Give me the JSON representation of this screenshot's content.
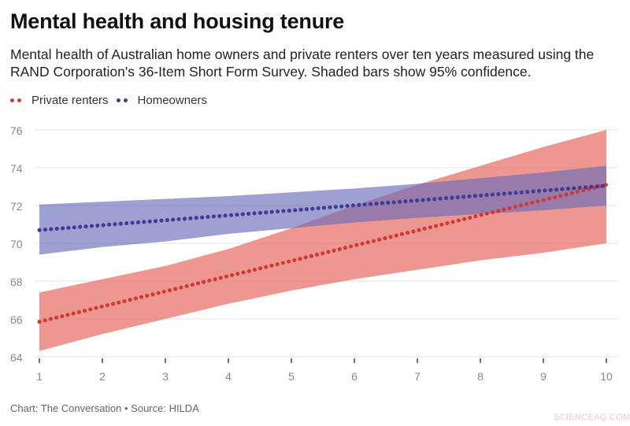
{
  "title": "Mental health and housing tenure",
  "subtitle": "Mental health of Australian home owners and private renters over ten years measured using the RAND Corporation's 36-Item Short Form Survey. Shaded bars show 95% confidence.",
  "footer": "Chart: The Conversation • Source: HILDA",
  "watermark": "SCIENCEAQ.COM",
  "chart_data": {
    "type": "line",
    "title": "Mental health and housing tenure",
    "xlabel": "",
    "ylabel": "",
    "x": [
      1,
      2,
      3,
      4,
      5,
      6,
      7,
      8,
      9,
      10
    ],
    "xlim": [
      1,
      10
    ],
    "ylim": [
      64,
      76
    ],
    "x_ticks": [
      "1",
      "2",
      "3",
      "4",
      "5",
      "6",
      "7",
      "8",
      "9",
      "10"
    ],
    "y_ticks": [
      "64",
      "66",
      "68",
      "70",
      "72",
      "74",
      "76"
    ],
    "grid": "horizontal",
    "legend_position": "top-left",
    "series": [
      {
        "name": "Private renters",
        "color": "#d03a34",
        "band_color": "#e8736b",
        "values": [
          65.85,
          66.66,
          67.46,
          68.27,
          69.07,
          69.88,
          70.68,
          71.49,
          72.29,
          73.1
        ],
        "upper": [
          67.4,
          68.1,
          68.8,
          69.7,
          70.8,
          72.0,
          73.1,
          74.1,
          75.1,
          76.0
        ],
        "lower": [
          64.3,
          65.2,
          66.0,
          66.8,
          67.5,
          68.1,
          68.6,
          69.1,
          69.5,
          70.0
        ]
      },
      {
        "name": "Homeowners",
        "color": "#3e3c94",
        "band_color": "#6a6db8",
        "values": [
          70.7,
          70.96,
          71.22,
          71.48,
          71.74,
          72.01,
          72.27,
          72.53,
          72.79,
          73.05
        ],
        "upper": [
          72.05,
          72.2,
          72.35,
          72.5,
          72.7,
          72.9,
          73.15,
          73.45,
          73.75,
          74.1
        ],
        "lower": [
          69.4,
          69.8,
          70.1,
          70.5,
          70.8,
          71.1,
          71.35,
          71.55,
          71.75,
          72.0
        ]
      }
    ]
  }
}
